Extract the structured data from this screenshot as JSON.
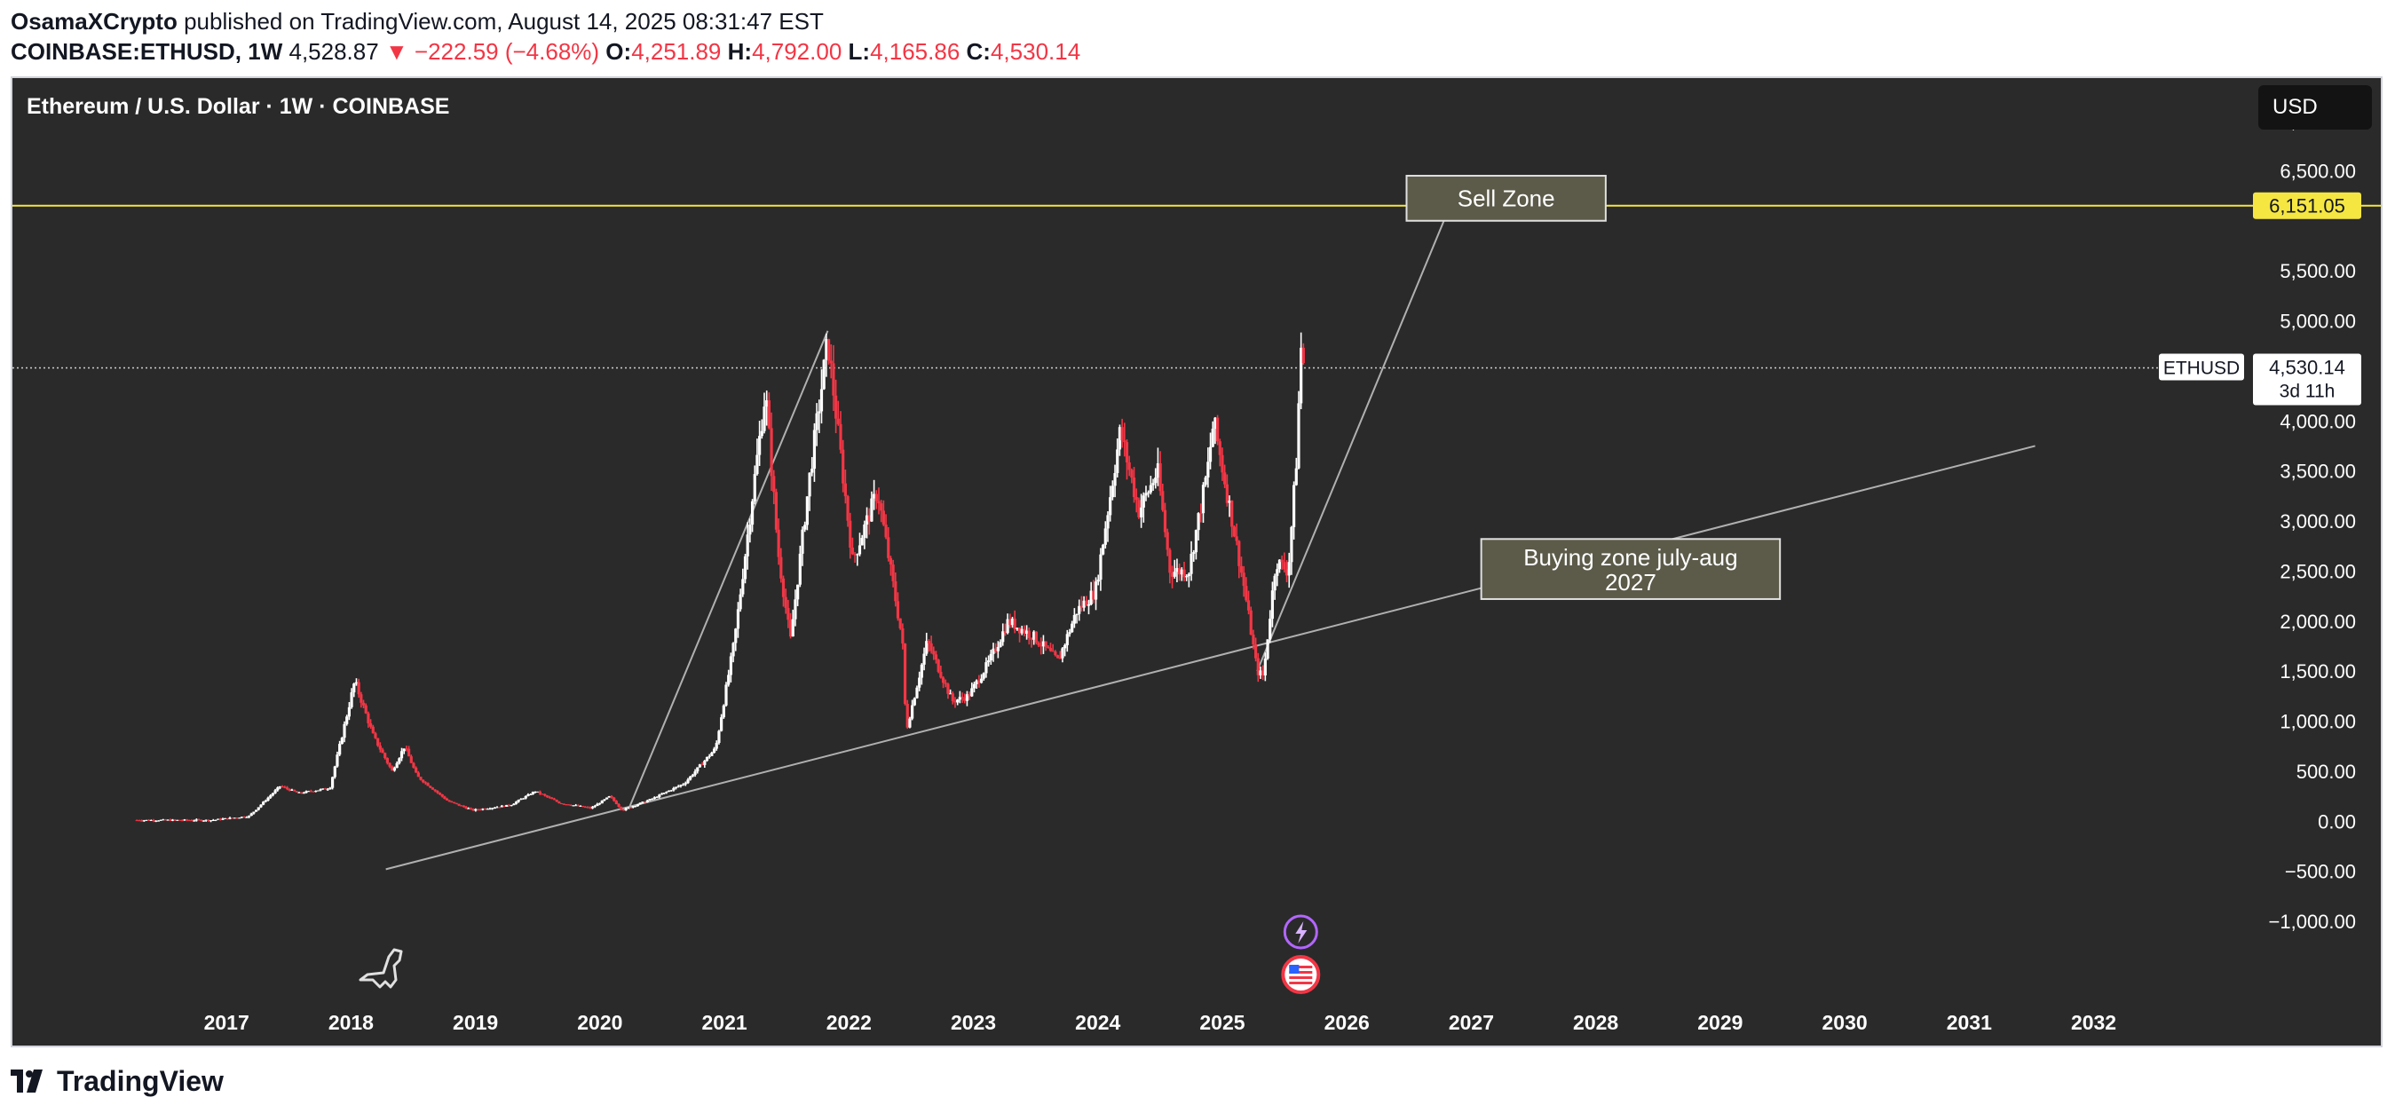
{
  "header": {
    "author": "OsamaXCrypto",
    "published": " published on TradingView.com, August 14, 2025 08:31:47 EST",
    "symbol": "COINBASE:ETHUSD, 1W",
    "last": "4,528.87",
    "change_arrow": "▼",
    "change": "−222.59 (−4.68%)",
    "o_label": "O:",
    "o": "4,251.89",
    "h_label": "H:",
    "h": "4,792.00",
    "l_label": "L:",
    "l": "4,165.86",
    "c_label": "C:",
    "c": "4,530.14"
  },
  "chart_title": "Ethereum / U.S. Dollar · 1W · COINBASE",
  "currency_button": "USD",
  "footer_brand": "TradingView",
  "colors": {
    "background": "#2a2a2a",
    "up": "#ffffff",
    "down": "#f23645",
    "horizontal_line": "#f5e642",
    "trendline": "#b0b0b0",
    "annotation_fill": "#5c5b4a"
  },
  "icons": [
    "dino-icon",
    "lightning-event-icon",
    "us-flag-event-icon",
    "tradingview-logo-icon"
  ],
  "chart_data": {
    "type": "candlestick",
    "title": "Ethereum / U.S. Dollar · 1W · COINBASE",
    "y_axis": {
      "ticks": [
        -1000,
        -500,
        0,
        500,
        1000,
        1500,
        2000,
        2500,
        3000,
        3500,
        4000,
        4500,
        5000,
        5500,
        6000,
        6500,
        7000
      ],
      "tick_labels": [
        "−1,000.00",
        "−500.00",
        "0.00",
        "500.00",
        "1,000.00",
        "1,500.00",
        "2,000.00",
        "2,500.00",
        "3,000.00",
        "3,500.00",
        "4,000.00",
        "",
        "5,000.00",
        "5,500.00",
        "",
        "6,500.00",
        "7,000.00"
      ],
      "range": [
        -1150,
        7100
      ]
    },
    "x_axis": {
      "labels": [
        "2017",
        "2018",
        "2019",
        "2020",
        "2021",
        "2022",
        "2023",
        "2024",
        "2025",
        "2026",
        "2027",
        "2028",
        "2029",
        "2030",
        "2031",
        "2032"
      ],
      "range": [
        2015.3,
        2033.2
      ]
    },
    "price_path": [
      [
        2016.3,
        10
      ],
      [
        2016.9,
        10
      ],
      [
        2017.2,
        50
      ],
      [
        2017.45,
        350
      ],
      [
        2017.6,
        280
      ],
      [
        2017.85,
        330
      ],
      [
        2018.05,
        1400
      ],
      [
        2018.2,
        850
      ],
      [
        2018.35,
        500
      ],
      [
        2018.45,
        750
      ],
      [
        2018.55,
        450
      ],
      [
        2018.8,
        200
      ],
      [
        2019.0,
        110
      ],
      [
        2019.3,
        160
      ],
      [
        2019.5,
        300
      ],
      [
        2019.7,
        180
      ],
      [
        2019.95,
        130
      ],
      [
        2020.1,
        250
      ],
      [
        2020.2,
        110
      ],
      [
        2020.45,
        230
      ],
      [
        2020.7,
        380
      ],
      [
        2020.95,
        730
      ],
      [
        2021.1,
        1800
      ],
      [
        2021.35,
        4300
      ],
      [
        2021.45,
        2700
      ],
      [
        2021.55,
        1800
      ],
      [
        2021.7,
        3400
      ],
      [
        2021.85,
        4800
      ],
      [
        2021.95,
        3700
      ],
      [
        2022.05,
        2600
      ],
      [
        2022.25,
        3300
      ],
      [
        2022.45,
        1800
      ],
      [
        2022.48,
        900
      ],
      [
        2022.65,
        1800
      ],
      [
        2022.85,
        1200
      ],
      [
        2022.98,
        1250
      ],
      [
        2023.15,
        1600
      ],
      [
        2023.3,
        2000
      ],
      [
        2023.5,
        1850
      ],
      [
        2023.7,
        1600
      ],
      [
        2023.85,
        2100
      ],
      [
        2024.0,
        2300
      ],
      [
        2024.2,
        3900
      ],
      [
        2024.35,
        3100
      ],
      [
        2024.5,
        3500
      ],
      [
        2024.6,
        2500
      ],
      [
        2024.75,
        2500
      ],
      [
        2024.9,
        3500
      ],
      [
        2024.95,
        4000
      ],
      [
        2025.1,
        3000
      ],
      [
        2025.2,
        2300
      ],
      [
        2025.3,
        1500
      ],
      [
        2025.35,
        1450
      ],
      [
        2025.45,
        2600
      ],
      [
        2025.55,
        2500
      ],
      [
        2025.62,
        3700
      ],
      [
        2025.65,
        4750
      ],
      [
        2025.68,
        4530
      ]
    ],
    "last_price": {
      "label": "ETHUSD",
      "value": "4,530.14",
      "countdown": "3d 11h"
    },
    "horizontal_line": {
      "value": 6151.05,
      "label": "6,151.05"
    },
    "trendlines": [
      {
        "from": [
          2018.3,
          -480
        ],
        "to": [
          2031.55,
          3750
        ]
      },
      {
        "from": [
          2020.25,
          120
        ],
        "to": [
          2021.85,
          4900
        ]
      },
      {
        "from": [
          2025.3,
          1500
        ],
        "to": [
          2026.8,
          6000
        ]
      }
    ],
    "annotations": [
      {
        "text": "Sell Zone",
        "x_range": [
          2026.5,
          2028.1
        ],
        "y_range": [
          6000,
          6450
        ]
      },
      {
        "text": "Buying zone july-aug 2027",
        "x_range": [
          2027.1,
          2029.5
        ],
        "y_range": [
          2220,
          2820
        ]
      }
    ]
  }
}
